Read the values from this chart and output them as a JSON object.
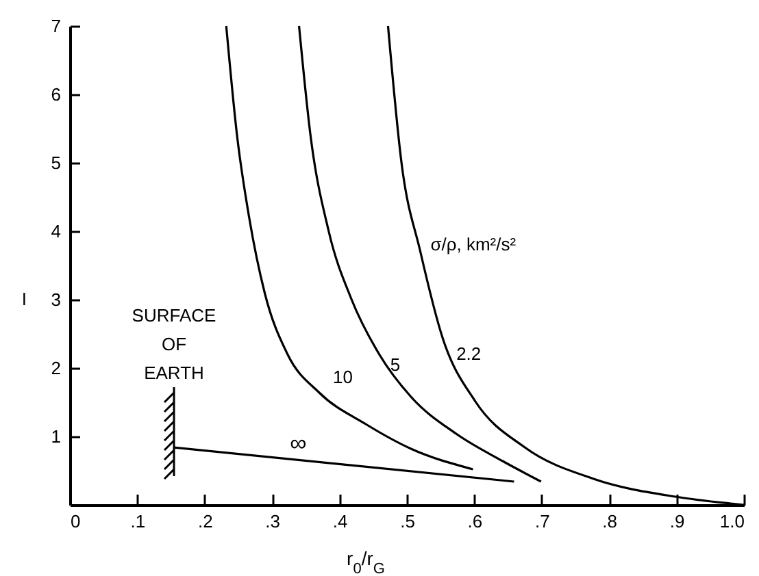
{
  "chart_data": {
    "type": "line",
    "xlabel": "r$_{0}$/r$_{G}$",
    "ylabel": "I",
    "xlim": [
      0,
      1.0
    ],
    "ylim": [
      0,
      7
    ],
    "xticks": [
      0,
      {
        "value": 0.1,
        "label": ".1"
      },
      {
        "value": 0.2,
        "label": ".2"
      },
      {
        "value": 0.3,
        "label": ".3"
      },
      {
        "value": 0.4,
        "label": ".4"
      },
      {
        "value": 0.5,
        "label": ".5"
      },
      {
        "value": 0.6,
        "label": ".6"
      },
      {
        "value": 0.7,
        "label": ".7"
      },
      {
        "value": 0.8,
        "label": ".8"
      },
      {
        "value": 0.9,
        "label": ".9"
      },
      {
        "value": 1.0,
        "label": "1.0"
      }
    ],
    "yticks": [
      1,
      2,
      3,
      4,
      5,
      6,
      7
    ],
    "grid": false,
    "marker": "none",
    "line_style": "solid",
    "series": [
      {
        "name": "10",
        "color": "#000000",
        "x": [
          0.232,
          0.248,
          0.266,
          0.289,
          0.323,
          0.37,
          0.439,
          0.506,
          0.598
        ],
        "values": [
          7,
          5.4,
          4.2,
          3.1,
          2.2,
          1.64,
          1.18,
          0.82,
          0.52
        ]
      },
      {
        "name": "5",
        "color": "#000000",
        "x": [
          0.34,
          0.357,
          0.384,
          0.418,
          0.459,
          0.506,
          0.573,
          0.642,
          0.699
        ],
        "values": [
          7,
          5.4,
          4.0,
          3.0,
          2.2,
          1.58,
          1.04,
          0.64,
          0.34
        ]
      },
      {
        "name": "2.2",
        "color": "#000000",
        "x": [
          0.472,
          0.492,
          0.52,
          0.553,
          0.601,
          0.675,
          0.777,
          0.898,
          0.98,
          1.0
        ],
        "values": [
          7,
          5.0,
          3.7,
          2.44,
          1.52,
          0.84,
          0.38,
          0.12,
          0.02,
          0
        ]
      },
      {
        "name": "∞",
        "color": "#000000",
        "x": [
          0.154,
          0.659
        ],
        "values": [
          0.84,
          0.34
        ]
      }
    ],
    "annotations": [
      "SURFACE OF EARTH",
      "σ/ρ, km²/s²"
    ]
  }
}
